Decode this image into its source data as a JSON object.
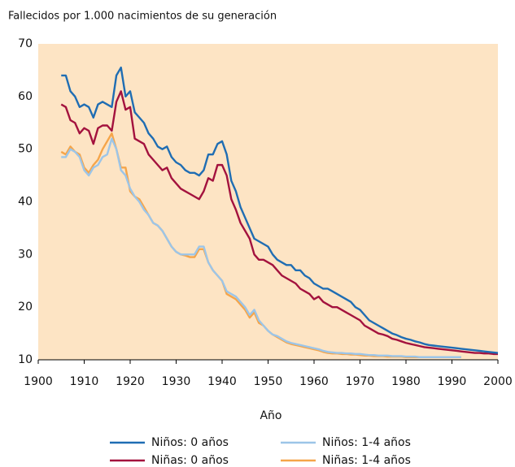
{
  "chart_data": {
    "type": "line",
    "y_label": "Fallecidos por 1.000 nacimientos de su generación",
    "x_label": "Año",
    "background": "#fde4c4",
    "xlim": [
      1900,
      2000
    ],
    "xticks": [
      1900,
      1910,
      1920,
      1930,
      1940,
      1950,
      1960,
      1970,
      1980,
      1990,
      2000
    ],
    "ylim": [
      10,
      70
    ],
    "yticks": [
      10,
      20,
      30,
      40,
      50,
      60,
      70
    ],
    "x": [
      1905,
      1906,
      1907,
      1908,
      1909,
      1910,
      1911,
      1912,
      1913,
      1914,
      1915,
      1916,
      1917,
      1918,
      1919,
      1920,
      1921,
      1922,
      1923,
      1924,
      1925,
      1926,
      1927,
      1928,
      1929,
      1930,
      1931,
      1932,
      1933,
      1934,
      1935,
      1936,
      1937,
      1938,
      1939,
      1940,
      1941,
      1942,
      1943,
      1944,
      1945,
      1946,
      1947,
      1948,
      1949,
      1950,
      1951,
      1952,
      1953,
      1954,
      1955,
      1956,
      1957,
      1958,
      1959,
      1960,
      1961,
      1962,
      1963,
      1964,
      1965,
      1966,
      1967,
      1968,
      1969,
      1970,
      1971,
      1972,
      1973,
      1974,
      1975,
      1976,
      1977,
      1978,
      1979,
      1980,
      1981,
      1982,
      1983,
      1984,
      1985,
      1986,
      1987,
      1988,
      1989,
      1990,
      1991,
      1992,
      1993,
      1994,
      1995,
      1996,
      1997,
      1998,
      1999,
      2000
    ],
    "series": [
      {
        "name": "Niños: 0 años",
        "color": "#1f6db3",
        "values": [
          64,
          64,
          61,
          60,
          58,
          58.5,
          58,
          56,
          58.5,
          59,
          58.5,
          58,
          64,
          65.5,
          60,
          61,
          57,
          56,
          55,
          53,
          52,
          50.5,
          50,
          50.5,
          48.5,
          47.5,
          47,
          46,
          45.5,
          45.5,
          45,
          46,
          49,
          49,
          51,
          51.5,
          49,
          44,
          42,
          39,
          37,
          35,
          33,
          32.5,
          32,
          31.5,
          30,
          29,
          28.5,
          28,
          28,
          27,
          27,
          26,
          25.5,
          24.5,
          24,
          23.5,
          23.5,
          23,
          22.5,
          22,
          21.5,
          21,
          20,
          19.5,
          18.5,
          17.5,
          17,
          16.5,
          16,
          15.5,
          15,
          14.7,
          14.3,
          14,
          13.8,
          13.5,
          13.3,
          13,
          12.8,
          12.7,
          12.6,
          12.5,
          12.4,
          12.3,
          12.2,
          12.1,
          12,
          11.9,
          11.8,
          11.7,
          11.6,
          11.5,
          11.4,
          11.3
        ]
      },
      {
        "name": "Niñas: 0 años",
        "color": "#a3123e",
        "values": [
          58.5,
          58,
          55.5,
          55,
          53,
          54,
          53.5,
          51,
          54,
          54.5,
          54.5,
          53.5,
          59,
          61,
          57.5,
          58,
          52,
          51.5,
          51,
          49,
          48,
          47,
          46,
          46.5,
          44.5,
          43.5,
          42.5,
          42,
          41.5,
          41,
          40.5,
          42,
          44.5,
          44,
          47,
          47,
          45,
          40.5,
          38.5,
          36,
          34.5,
          33,
          30,
          29,
          29,
          28.5,
          28,
          27,
          26,
          25.5,
          25,
          24.5,
          23.5,
          23,
          22.5,
          21.5,
          22,
          21,
          20.5,
          20,
          20,
          19.5,
          19,
          18.5,
          18,
          17.5,
          16.5,
          16,
          15.5,
          15,
          14.8,
          14.5,
          14,
          13.8,
          13.5,
          13.2,
          13,
          12.8,
          12.6,
          12.4,
          12.3,
          12.2,
          12.1,
          12,
          11.9,
          11.8,
          11.7,
          11.6,
          11.5,
          11.4,
          11.3,
          11.3,
          11.2,
          11.2,
          11.1,
          11.1
        ]
      },
      {
        "name": "Niños: 1-4 años",
        "color": "#9cc5e8",
        "values": [
          48.5,
          48.5,
          50,
          49.5,
          48.5,
          46,
          45,
          46.5,
          47,
          48.5,
          49,
          52,
          50,
          46,
          45,
          42.5,
          41,
          40,
          38.5,
          37.5,
          36,
          35.5,
          34.5,
          33,
          31.5,
          30.5,
          30,
          30,
          30,
          30,
          31.5,
          31.5,
          28.5,
          27,
          26,
          25,
          23,
          22.5,
          22,
          21,
          20,
          18.5,
          19.5,
          17.5,
          16.5,
          15.5,
          14.8,
          14.5,
          14,
          13.5,
          13.2,
          13,
          12.8,
          12.6,
          12.4,
          12.2,
          12,
          11.7,
          11.5,
          11.4,
          11.3,
          11.3,
          11.2,
          11.2,
          11.1,
          11.1,
          11,
          10.9,
          10.9,
          10.8,
          10.8,
          10.8,
          10.7,
          10.7,
          10.7,
          10.6,
          10.6,
          10.6,
          10.5,
          10.5,
          10.5,
          10.5,
          10.5,
          10.5,
          10.5,
          10.5,
          10.5,
          10.5,
          null,
          null,
          null,
          null,
          null,
          null,
          null,
          null
        ]
      },
      {
        "name": "Niñas: 1-4 años",
        "color": "#f5a54a",
        "values": [
          49.5,
          49,
          50.5,
          49.5,
          49,
          46.5,
          45.5,
          47,
          48,
          50,
          51.5,
          53,
          50,
          46.5,
          46.5,
          42,
          41,
          40.5,
          39,
          37.5,
          36,
          35.5,
          34.5,
          33,
          31.5,
          30.5,
          30,
          29.8,
          29.5,
          29.5,
          31,
          31,
          28.5,
          27,
          26,
          25,
          22.5,
          22,
          21.5,
          20.5,
          19.5,
          18,
          19,
          17,
          16.5,
          15.5,
          14.8,
          14.3,
          13.8,
          13.3,
          13,
          12.8,
          12.6,
          12.4,
          12.2,
          12,
          11.8,
          11.5,
          11.3,
          11.2,
          11.2,
          11.1,
          11.1,
          11,
          11,
          10.9,
          10.8,
          10.8,
          10.7,
          10.7,
          10.7,
          10.6,
          10.6,
          10.6,
          10.6,
          10.5,
          10.5,
          10.5,
          10.5,
          10.5,
          10.5,
          10.5,
          10.5,
          10.5,
          10.5,
          10.5,
          10.5,
          10.5,
          null,
          null,
          null,
          null,
          null,
          null,
          null,
          null
        ]
      }
    ]
  }
}
